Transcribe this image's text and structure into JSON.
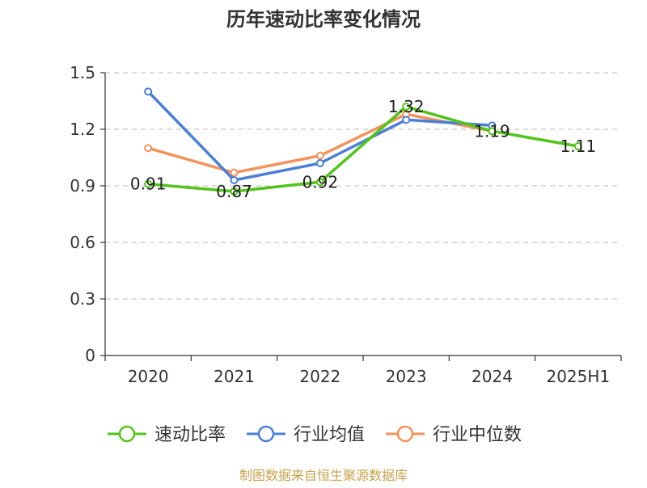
{
  "chart_data": {
    "type": "line",
    "title": "历年速动比率变化情况",
    "categories": [
      "2020",
      "2021",
      "2022",
      "2023",
      "2024",
      "2025H1"
    ],
    "y_ticks": [
      "0",
      "0.3",
      "0.6",
      "0.9",
      "1.2",
      "1.5"
    ],
    "ylim": [
      0,
      1.5
    ],
    "grid": true,
    "legend_position": "bottom",
    "series": [
      {
        "name": "速动比率",
        "color": "#52c41a",
        "values": [
          0.91,
          0.87,
          0.92,
          1.32,
          1.19,
          1.11
        ],
        "labels": [
          "0.91",
          "0.87",
          "0.92",
          "1.32",
          "1.19",
          "1.11"
        ]
      },
      {
        "name": "行业均值",
        "color": "#4a7fd8",
        "values": [
          1.4,
          0.93,
          1.02,
          1.25,
          1.22,
          null
        ]
      },
      {
        "name": "行业中位数",
        "color": "#f4925a",
        "values": [
          1.1,
          0.97,
          1.06,
          1.28,
          1.19,
          null
        ]
      }
    ]
  },
  "source": "制图数据来自恒生聚源数据库"
}
